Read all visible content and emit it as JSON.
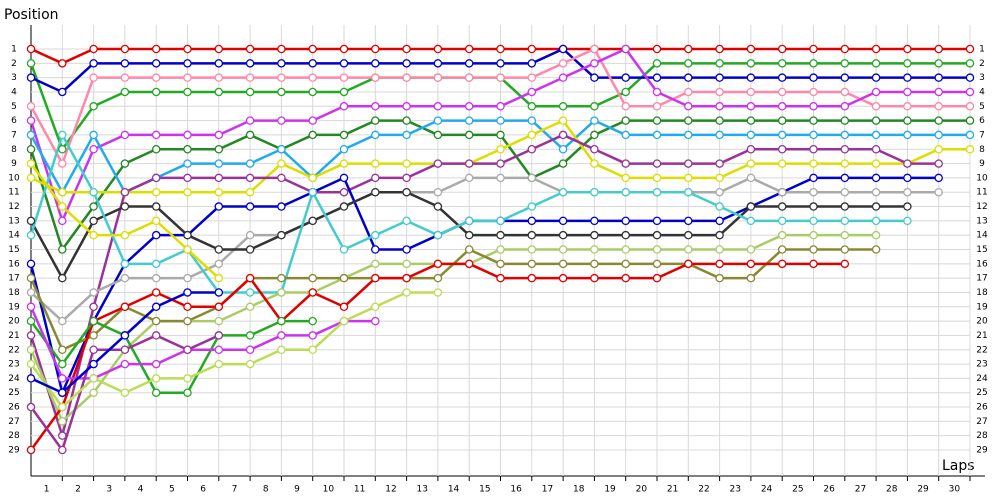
{
  "chart_data": {
    "type": "line",
    "y_label": "Position",
    "x_label": "Laps",
    "x": [
      0,
      1,
      2,
      3,
      4,
      5,
      6,
      7,
      8,
      9,
      10,
      11,
      12,
      13,
      14,
      15,
      16,
      17,
      18,
      19,
      20,
      21,
      22,
      23,
      24,
      25,
      26,
      27,
      28,
      29,
      30
    ],
    "xlim": [
      0,
      30
    ],
    "xticks": [
      1,
      2,
      3,
      4,
      5,
      6,
      7,
      8,
      9,
      10,
      11,
      12,
      13,
      14,
      15,
      16,
      17,
      18,
      19,
      20,
      21,
      22,
      23,
      24,
      25,
      26,
      27,
      28,
      29,
      30
    ],
    "ylim": [
      1,
      29
    ],
    "yticks": [
      1,
      2,
      3,
      4,
      5,
      6,
      7,
      8,
      9,
      10,
      11,
      12,
      13,
      14,
      15,
      16,
      17,
      18,
      19,
      20,
      21,
      22,
      23,
      24,
      25,
      26,
      27,
      28,
      29
    ],
    "y_inverted": true,
    "grid": true,
    "series": [
      {
        "color": "#e00000",
        "values": [
          1,
          2,
          1,
          1,
          1,
          1,
          1,
          1,
          1,
          1,
          1,
          1,
          1,
          1,
          1,
          1,
          1,
          1,
          1,
          1,
          1,
          1,
          1,
          1,
          1,
          1,
          1,
          1,
          1,
          1,
          1
        ]
      },
      {
        "color": "#22aa22",
        "values": [
          2,
          8,
          5,
          4,
          4,
          4,
          4,
          4,
          4,
          4,
          4,
          3,
          3,
          3,
          3,
          3,
          5,
          5,
          5,
          4,
          2,
          2,
          2,
          2,
          2,
          2,
          2,
          2,
          2,
          2,
          2
        ]
      },
      {
        "color": "#0000cc",
        "values": [
          3,
          4,
          2,
          2,
          2,
          2,
          2,
          2,
          2,
          2,
          2,
          2,
          2,
          2,
          2,
          2,
          2,
          1,
          3,
          3,
          3,
          3,
          3,
          3,
          3,
          3,
          3,
          3,
          3,
          3,
          3
        ]
      },
      {
        "color": "#ff88aa",
        "values": [
          5,
          9,
          3,
          3,
          3,
          3,
          3,
          3,
          3,
          3,
          3,
          3,
          3,
          3,
          3,
          3,
          3,
          2,
          1,
          5,
          5,
          4,
          4,
          4,
          4,
          4,
          4,
          5,
          5,
          5,
          5
        ]
      },
      {
        "color": "#cc33ee",
        "values": [
          6,
          13,
          8,
          7,
          7,
          7,
          7,
          6,
          6,
          6,
          5,
          5,
          5,
          5,
          5,
          5,
          4,
          3,
          2,
          1,
          4,
          5,
          5,
          5,
          5,
          5,
          5,
          4,
          4,
          4,
          4
        ]
      },
      {
        "color": "#228822",
        "values": [
          8,
          15,
          12,
          9,
          8,
          8,
          8,
          7,
          8,
          7,
          7,
          6,
          6,
          7,
          7,
          7,
          10,
          9,
          7,
          6,
          6,
          6,
          6,
          6,
          6,
          6,
          6,
          6,
          6,
          6,
          6
        ]
      },
      {
        "color": "#22aaee",
        "values": [
          7,
          11,
          7,
          11,
          10,
          9,
          9,
          9,
          8,
          10,
          8,
          7,
          7,
          6,
          6,
          6,
          6,
          8,
          6,
          7,
          7,
          7,
          7,
          7,
          7,
          7,
          7,
          7,
          7,
          7,
          7
        ]
      },
      {
        "color": "#dddd00",
        "values": [
          10,
          11,
          11,
          11,
          11,
          11,
          11,
          11,
          9,
          10,
          9,
          9,
          9,
          9,
          9,
          8,
          7,
          6,
          9,
          10,
          10,
          10,
          10,
          9,
          9,
          9,
          9,
          9,
          9,
          8,
          8
        ]
      },
      {
        "color": "#993399",
        "values": [
          21,
          28,
          19,
          11,
          10,
          10,
          10,
          10,
          10,
          11,
          11,
          10,
          10,
          9,
          9,
          9,
          8,
          7,
          8,
          9,
          9,
          9,
          9,
          8,
          8,
          8,
          8,
          8,
          9,
          9,
          null
        ]
      },
      {
        "color": "#0000cc",
        "values": [
          16,
          25,
          20,
          16,
          14,
          14,
          12,
          12,
          12,
          11,
          10,
          15,
          15,
          14,
          13,
          13,
          13,
          13,
          13,
          13,
          13,
          13,
          13,
          12,
          11,
          10,
          10,
          10,
          10,
          10,
          null
        ]
      },
      {
        "color": "#aaaaaa",
        "values": [
          18,
          20,
          18,
          17,
          17,
          17,
          16,
          14,
          14,
          13,
          12,
          11,
          11,
          11,
          10,
          10,
          10,
          11,
          11,
          11,
          11,
          11,
          11,
          10,
          11,
          11,
          11,
          11,
          11,
          11,
          null
        ]
      },
      {
        "color": "#333333",
        "values": [
          13,
          17,
          13,
          12,
          12,
          14,
          15,
          15,
          14,
          13,
          12,
          11,
          11,
          12,
          14,
          14,
          14,
          14,
          14,
          14,
          14,
          14,
          14,
          12,
          12,
          12,
          12,
          12,
          12,
          null,
          null
        ]
      },
      {
        "color": "#44cccc",
        "values": [
          14,
          7,
          11,
          16,
          16,
          15,
          18,
          18,
          18,
          11,
          15,
          14,
          13,
          14,
          13,
          13,
          12,
          11,
          11,
          11,
          11,
          11,
          12,
          13,
          13,
          13,
          13,
          13,
          13,
          null,
          null
        ]
      },
      {
        "color": "#aacc66",
        "values": [
          22,
          27,
          25,
          22,
          20,
          20,
          20,
          19,
          18,
          18,
          17,
          16,
          16,
          16,
          16,
          15,
          15,
          15,
          15,
          15,
          15,
          15,
          15,
          15,
          14,
          14,
          14,
          14,
          null,
          null,
          null
        ]
      },
      {
        "color": "#888833",
        "values": [
          17,
          22,
          21,
          19,
          20,
          20,
          19,
          17,
          17,
          17,
          17,
          17,
          17,
          17,
          15,
          16,
          16,
          16,
          16,
          16,
          16,
          16,
          17,
          17,
          15,
          15,
          15,
          15,
          null,
          null,
          null
        ]
      },
      {
        "color": "#e00000",
        "values": [
          29,
          26,
          20,
          19,
          18,
          19,
          19,
          17,
          20,
          18,
          19,
          17,
          17,
          16,
          16,
          17,
          17,
          17,
          17,
          17,
          17,
          16,
          16,
          16,
          16,
          16,
          16,
          null,
          null,
          null,
          null
        ]
      },
      {
        "color": "#22aa22",
        "values": [
          20,
          23,
          20,
          21,
          25,
          25,
          21,
          21,
          20,
          20,
          null,
          null,
          null,
          null,
          null,
          null,
          null,
          null,
          null,
          null,
          null,
          null,
          null,
          null,
          null,
          null,
          null,
          null,
          null,
          null,
          null
        ]
      },
      {
        "color": "#cc33ee",
        "values": [
          19,
          24,
          24,
          23,
          23,
          22,
          22,
          22,
          21,
          21,
          20,
          20,
          null,
          null,
          null,
          null,
          null,
          null,
          null,
          null,
          null,
          null,
          null,
          null,
          null,
          null,
          null,
          null,
          null,
          null,
          null
        ]
      },
      {
        "color": "#993399",
        "values": [
          26,
          29,
          22,
          22,
          21,
          22,
          21,
          null,
          null,
          null,
          null,
          null,
          null,
          null,
          null,
          null,
          null,
          null,
          null,
          null,
          null,
          null,
          null,
          null,
          null,
          null,
          null,
          null,
          null,
          null,
          null
        ]
      },
      {
        "color": "#bbdd55",
        "values": [
          23,
          26,
          24,
          25,
          24,
          24,
          23,
          23,
          22,
          22,
          20,
          19,
          18,
          18,
          null,
          null,
          null,
          null,
          null,
          null,
          null,
          null,
          null,
          null,
          null,
          null,
          null,
          null,
          null,
          null,
          null
        ]
      },
      {
        "color": "#0000cc",
        "values": [
          24,
          25,
          23,
          21,
          19,
          18,
          18,
          null,
          null,
          null,
          null,
          null,
          null,
          null,
          null,
          null,
          null,
          null,
          null,
          null,
          null,
          null,
          null,
          null,
          null,
          null,
          null,
          null,
          null,
          null,
          null
        ]
      },
      {
        "color": "#dddd00",
        "values": [
          9,
          12,
          14,
          14,
          13,
          15,
          17,
          null,
          null,
          null,
          null,
          null,
          null,
          null,
          null,
          null,
          null,
          null,
          null,
          null,
          null,
          null,
          null,
          null,
          null,
          null,
          null,
          null,
          null,
          null,
          null
        ]
      }
    ]
  }
}
